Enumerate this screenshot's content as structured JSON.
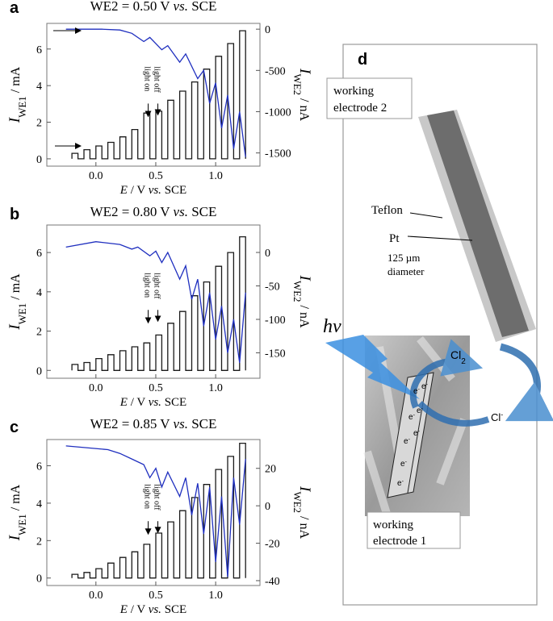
{
  "chart_data": [
    {
      "type": "line",
      "panel": "a",
      "title": [
        "WE2 = 0.50 V ",
        "vs.",
        " SCE"
      ],
      "xlabel": [
        "E",
        " / V ",
        "vs.",
        " SCE"
      ],
      "ylabel": [
        "I",
        "WE1",
        " / mA"
      ],
      "y2label": [
        "I",
        "WE2",
        " / nA"
      ],
      "annotations": [
        "light off",
        "light on"
      ],
      "xlim": [
        -0.41,
        1.37
      ],
      "xticks": [
        {
          "value": 0,
          "label": "0.0"
        },
        0.5,
        {
          "value": 1,
          "label": "1.0"
        }
      ],
      "ylim": [
        -0.4,
        7.4
      ],
      "yticks": [
        0,
        2,
        4,
        6
      ],
      "y2lim": [
        -1660,
        70
      ],
      "y2ticks": [
        0,
        -500,
        -1000,
        -1500
      ],
      "series": [
        {
          "color": "#1a1a1a",
          "axis": "y",
          "x": [
            -0.2,
            -0.2,
            -0.15,
            -0.15,
            -0.1,
            -0.1,
            -0.05,
            -0.05,
            0,
            0,
            0.05,
            0.05,
            0.1,
            0.1,
            0.15,
            0.15,
            0.2,
            0.2,
            0.25,
            0.25,
            0.3,
            0.3,
            0.35,
            0.35,
            0.4,
            0.4,
            0.45,
            0.45,
            0.5,
            0.5,
            0.55,
            0.55,
            0.6,
            0.6,
            0.65,
            0.65,
            0.7,
            0.7,
            0.75,
            0.75,
            0.8,
            0.8,
            0.85,
            0.85,
            0.9,
            0.9,
            0.95,
            0.95,
            1.0,
            1.0,
            1.05,
            1.05,
            1.1,
            1.1,
            1.15,
            1.15,
            1.2,
            1.2,
            1.25,
            1.25
          ],
          "values": [
            0,
            0.3,
            0.3,
            0,
            0,
            0.5,
            0.5,
            0,
            0,
            0.7,
            0.7,
            0,
            0,
            0.9,
            0.9,
            0,
            0,
            1.2,
            1.2,
            0,
            0,
            1.6,
            1.6,
            0,
            0,
            2.5,
            2.5,
            0,
            0,
            2.6,
            2.6,
            0,
            0,
            3.2,
            3.2,
            0,
            0,
            3.7,
            3.7,
            0,
            0,
            4.2,
            4.2,
            0,
            0,
            4.9,
            4.9,
            0,
            0,
            5.6,
            5.6,
            0,
            0,
            6.3,
            6.3,
            0,
            0,
            7.0,
            7.0,
            0
          ]
        },
        {
          "color": "#1f2fbf",
          "axis": "y2",
          "x": [
            -0.25,
            -0.1,
            0.05,
            0.2,
            0.3,
            0.4,
            0.45,
            0.55,
            0.6,
            0.7,
            0.75,
            0.85,
            0.9,
            0.95,
            1.0,
            1.05,
            1.1,
            1.15,
            1.2,
            1.25
          ],
          "values": [
            0,
            0,
            0,
            -10,
            -50,
            -150,
            -100,
            -250,
            -200,
            -400,
            -300,
            -600,
            -500,
            -900,
            -650,
            -1200,
            -800,
            -1450,
            -1000,
            -1550
          ]
        }
      ]
    },
    {
      "type": "line",
      "panel": "b",
      "title": [
        "WE2 = 0.80 V ",
        "vs.",
        " SCE"
      ],
      "xlabel": [
        "E",
        " / V ",
        "vs.",
        " SCE"
      ],
      "ylabel": [
        "I",
        "WE1",
        " / mA"
      ],
      "y2label": [
        "I",
        "WE2",
        " / nA"
      ],
      "annotations": [
        "light off",
        "light on"
      ],
      "xlim": [
        -0.41,
        1.37
      ],
      "xticks": [
        {
          "value": 0,
          "label": "0.0"
        },
        0.5,
        {
          "value": 1,
          "label": "1.0"
        }
      ],
      "ylim": [
        -0.4,
        7.4
      ],
      "yticks": [
        0,
        2,
        4,
        6
      ],
      "y2lim": [
        -188,
        41
      ],
      "y2ticks": [
        0,
        -50,
        -100,
        -150
      ],
      "series": [
        {
          "color": "#1a1a1a",
          "axis": "y",
          "x": [
            -0.2,
            -0.2,
            -0.15,
            -0.15,
            -0.1,
            -0.1,
            -0.05,
            -0.05,
            0,
            0,
            0.05,
            0.05,
            0.1,
            0.1,
            0.15,
            0.15,
            0.2,
            0.2,
            0.25,
            0.25,
            0.3,
            0.3,
            0.35,
            0.35,
            0.4,
            0.4,
            0.45,
            0.45,
            0.5,
            0.5,
            0.55,
            0.55,
            0.6,
            0.6,
            0.65,
            0.65,
            0.7,
            0.7,
            0.75,
            0.75,
            0.8,
            0.8,
            0.85,
            0.85,
            0.9,
            0.9,
            0.95,
            0.95,
            1.0,
            1.0,
            1.05,
            1.05,
            1.1,
            1.1,
            1.15,
            1.15,
            1.2,
            1.2,
            1.25,
            1.25
          ],
          "values": [
            0,
            0.3,
            0.3,
            0,
            0,
            0.4,
            0.4,
            0,
            0,
            0.6,
            0.6,
            0,
            0,
            0.8,
            0.8,
            0,
            0,
            1.0,
            1.0,
            0,
            0,
            1.2,
            1.2,
            0,
            0,
            1.4,
            1.4,
            0,
            0,
            1.8,
            1.8,
            0,
            0,
            2.4,
            2.4,
            0,
            0,
            3.0,
            3.0,
            0,
            0,
            3.8,
            3.8,
            0,
            0,
            4.5,
            4.5,
            0,
            0,
            5.3,
            5.3,
            0,
            0,
            6.0,
            6.0,
            0,
            0,
            6.8,
            6.8,
            0
          ]
        },
        {
          "color": "#1f2fbf",
          "axis": "y2",
          "x": [
            -0.25,
            0,
            0.2,
            0.3,
            0.35,
            0.45,
            0.5,
            0.55,
            0.6,
            0.7,
            0.75,
            0.8,
            0.85,
            0.9,
            0.95,
            1.0,
            1.05,
            1.1,
            1.15,
            1.2,
            1.25
          ],
          "values": [
            8,
            16,
            12,
            5,
            8,
            -5,
            2,
            -15,
            0,
            -40,
            -20,
            -70,
            -40,
            -110,
            -60,
            -130,
            -80,
            -150,
            -100,
            -165,
            -60
          ]
        }
      ]
    },
    {
      "type": "line",
      "panel": "c",
      "title": [
        "WE2 = 0.85 V ",
        "vs.",
        " SCE"
      ],
      "xlabel": [
        "E",
        " / V ",
        "vs.",
        " SCE"
      ],
      "ylabel": [
        "I",
        "WE1",
        " / mA"
      ],
      "y2label": [
        "I",
        "WE2",
        " / nA"
      ],
      "annotations": [
        "light off",
        "light on"
      ],
      "xlim": [
        -0.41,
        1.37
      ],
      "xticks": [
        {
          "value": 0,
          "label": "0.0"
        },
        0.5,
        {
          "value": 1,
          "label": "1.0"
        }
      ],
      "ylim": [
        -0.4,
        7.4
      ],
      "yticks": [
        0,
        2,
        4,
        6
      ],
      "y2lim": [
        -42.6,
        35.4
      ],
      "y2ticks": [
        20,
        0,
        -20,
        -40
      ],
      "series": [
        {
          "color": "#1a1a1a",
          "axis": "y",
          "x": [
            -0.2,
            -0.2,
            -0.15,
            -0.15,
            -0.1,
            -0.1,
            -0.05,
            -0.05,
            0,
            0,
            0.05,
            0.05,
            0.1,
            0.1,
            0.15,
            0.15,
            0.2,
            0.2,
            0.25,
            0.25,
            0.3,
            0.3,
            0.35,
            0.35,
            0.4,
            0.4,
            0.45,
            0.45,
            0.5,
            0.5,
            0.55,
            0.55,
            0.6,
            0.6,
            0.65,
            0.65,
            0.7,
            0.7,
            0.75,
            0.75,
            0.8,
            0.8,
            0.85,
            0.85,
            0.9,
            0.9,
            0.95,
            0.95,
            1.0,
            1.0,
            1.05,
            1.05,
            1.1,
            1.1,
            1.15,
            1.15,
            1.2,
            1.2,
            1.25,
            1.25
          ],
          "values": [
            0,
            0.2,
            0.2,
            0,
            0,
            0.3,
            0.3,
            0,
            0,
            0.5,
            0.5,
            0,
            0,
            0.8,
            0.8,
            0,
            0,
            1.1,
            1.1,
            0,
            0,
            1.4,
            1.4,
            0,
            0,
            1.8,
            1.8,
            0,
            0,
            2.4,
            2.4,
            0,
            0,
            3.0,
            3.0,
            0,
            0,
            3.6,
            3.6,
            0,
            0,
            4.3,
            4.3,
            0,
            0,
            5.0,
            5.0,
            0,
            0,
            5.8,
            5.8,
            0,
            0,
            6.5,
            6.5,
            0,
            0,
            7.2,
            7.2,
            0
          ]
        },
        {
          "color": "#1f2fbf",
          "axis": "y2",
          "x": [
            -0.25,
            0.1,
            0.2,
            0.3,
            0.4,
            0.45,
            0.5,
            0.55,
            0.6,
            0.7,
            0.75,
            0.8,
            0.85,
            0.9,
            0.95,
            1.0,
            1.05,
            1.1,
            1.15,
            1.2,
            1.25
          ],
          "values": [
            32,
            30,
            28,
            25,
            22,
            15,
            20,
            10,
            18,
            5,
            15,
            -5,
            12,
            -15,
            10,
            -30,
            5,
            -38,
            15,
            -10,
            25
          ]
        }
      ]
    }
  ],
  "diagram": {
    "label": "d",
    "we2": [
      "working",
      "electrode 2"
    ],
    "teflon": "Teflon",
    "pt": "Pt",
    "pt_size": [
      "125 µm",
      "diameter"
    ],
    "hv": "hv",
    "cl2": [
      "Cl",
      "2"
    ],
    "cl_minus": [
      "Cl",
      "-"
    ],
    "electron": [
      "e",
      "-"
    ],
    "we1": [
      "working",
      "electrode 1"
    ]
  }
}
